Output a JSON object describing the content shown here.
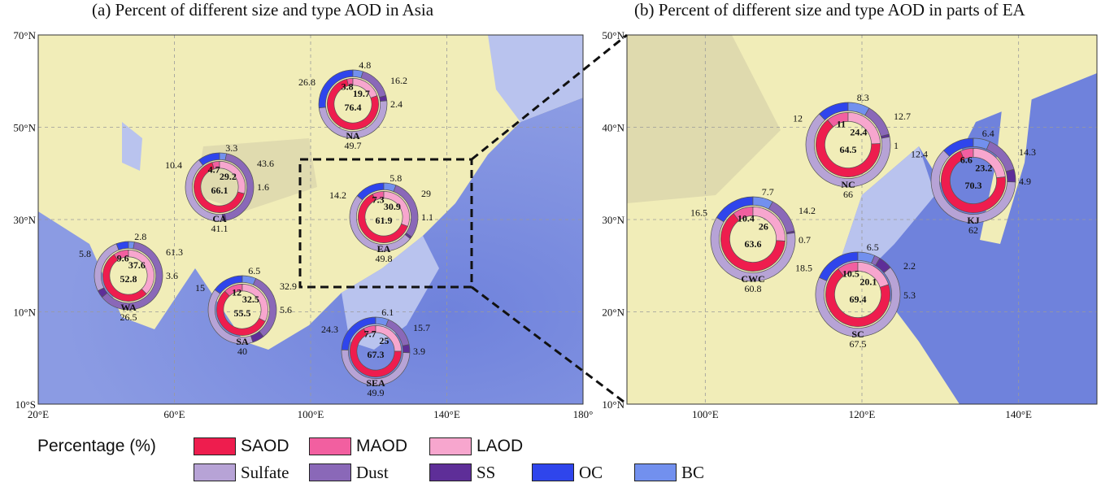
{
  "panel_a": {
    "title": "(a) Percent of different size and type AOD in Asia",
    "lat_labels": [
      "70°N",
      "50°N",
      "30°N",
      "10°N",
      "10°S"
    ],
    "lon_labels": [
      "20°E",
      "60°E",
      "100°E",
      "140°E",
      "180°"
    ],
    "regions": [
      {
        "name": "NA",
        "size": {
          "SAOD": 76.4,
          "MAOD": 3.8,
          "LAOD": 19.7
        },
        "type": {
          "Sulfate": 49.7,
          "Dust": 16.2,
          "SS": 2.4,
          "OC": 26.8,
          "BC": 4.8
        }
      },
      {
        "name": "CA",
        "size": {
          "SAOD": 66.1,
          "MAOD": 4.7,
          "LAOD": 29.2
        },
        "type": {
          "Sulfate": 41.1,
          "Dust": 43.6,
          "SS": 1.6,
          "OC": 10.4,
          "BC": 3.3
        }
      },
      {
        "name": "EA",
        "size": {
          "SAOD": 61.9,
          "MAOD": 7.3,
          "LAOD": 30.9
        },
        "type": {
          "Sulfate": 49.8,
          "Dust": 29,
          "SS": 1.1,
          "OC": 14.2,
          "BC": 5.8
        }
      },
      {
        "name": "WA",
        "size": {
          "SAOD": 52.8,
          "MAOD": 9.6,
          "LAOD": 37.6
        },
        "type": {
          "Sulfate": 26.5,
          "Dust": 61.3,
          "SS": 3.6,
          "OC": 5.8,
          "BC": 2.8
        }
      },
      {
        "name": "SA",
        "size": {
          "SAOD": 55.5,
          "MAOD": 12,
          "LAOD": 32.5
        },
        "type": {
          "Sulfate": 40,
          "Dust": 32.9,
          "SS": 5.6,
          "OC": 15,
          "BC": 6.5
        }
      },
      {
        "name": "SEA",
        "size": {
          "SAOD": 67.3,
          "MAOD": 7.7,
          "LAOD": 25
        },
        "type": {
          "Sulfate": 49.9,
          "Dust": 15.7,
          "SS": 3.9,
          "OC": 24.3,
          "BC": 6.1
        }
      }
    ]
  },
  "panel_b": {
    "title": "(b) Percent of different size and type AOD in parts of EA",
    "lat_labels": [
      "50°N",
      "40°N",
      "30°N",
      "20°N",
      "10°N"
    ],
    "lon_labels": [
      "100°E",
      "120°E",
      "140°E"
    ],
    "regions": [
      {
        "name": "NC",
        "size": {
          "SAOD": 64.5,
          "MAOD": 11,
          "LAOD": 24.4
        },
        "type": {
          "Sulfate": 66,
          "Dust": 12.7,
          "SS": 1,
          "OC": 12,
          "BC": 8.3
        }
      },
      {
        "name": "KJ",
        "size": {
          "SAOD": 70.3,
          "MAOD": 6.6,
          "LAOD": 23.2
        },
        "type": {
          "Sulfate": 62,
          "Dust": 14.3,
          "SS": 4.9,
          "OC": 12.4,
          "BC": 6.4
        }
      },
      {
        "name": "CWC",
        "size": {
          "SAOD": 63.6,
          "MAOD": 10.4,
          "LAOD": 26
        },
        "type": {
          "Sulfate": 60.8,
          "Dust": 14.2,
          "SS": 0.7,
          "OC": 16.5,
          "BC": 7.7
        }
      },
      {
        "name": "SC",
        "size": {
          "SAOD": 69.4,
          "MAOD": 10.5,
          "LAOD": 20.1
        },
        "type": {
          "Sulfate": 67.5,
          "Dust": 2.2,
          "SS": 5.3,
          "OC": 18.5,
          "BC": 6.5
        }
      }
    ]
  },
  "legend": {
    "label": "Percentage (%)",
    "size_items": [
      {
        "name": "SAOD",
        "color": "#ee1d4e"
      },
      {
        "name": "MAOD",
        "color": "#f25fa0"
      },
      {
        "name": "LAOD",
        "color": "#f7a6ce"
      }
    ],
    "type_items": [
      {
        "name": "Sulfate",
        "color": "#b7a3d6"
      },
      {
        "name": "Dust",
        "color": "#8a68b8"
      },
      {
        "name": "SS",
        "color": "#5e2e98"
      },
      {
        "name": "OC",
        "color": "#2f45ec"
      },
      {
        "name": "BC",
        "color": "#7290ee"
      }
    ]
  },
  "colors": {
    "land": "#f1edb8",
    "ocean_deep": "#6f82dc",
    "ocean_shallow": "#b9c3ee",
    "highland": "#dcd6ac",
    "grid": "#9a9a9a"
  }
}
